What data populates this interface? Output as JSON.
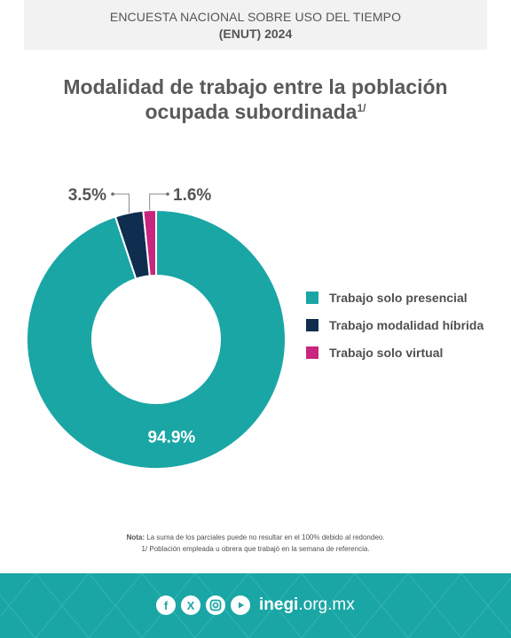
{
  "header": {
    "line1": "ENCUESTA NACIONAL SOBRE USO DEL TIEMPO",
    "line2": "(ENUT) 2024"
  },
  "chart_data": {
    "type": "pie",
    "title_line1": "Modalidad de trabajo entre la población",
    "title_line2": "ocupada subordinada",
    "title_sup": "1/",
    "labels": [
      "Trabajo solo presencial",
      "Trabajo modalidad híbrida",
      "Trabajo solo virtual"
    ],
    "values": [
      94.9,
      3.5,
      1.6
    ],
    "value_labels": [
      "94.9%",
      "3.5%",
      "1.6%"
    ],
    "colors": [
      "#1aa6a5",
      "#0e2d4f",
      "#c8267f"
    ],
    "donut": true,
    "legend_position": "right"
  },
  "note": {
    "prefix": "Nota:",
    "line1": "La suma de los parciales puede no resultar en el 100% debido al redondeo.",
    "line2": "1/ Población empleada u obrera que trabajó en la semana de referencia."
  },
  "footer": {
    "social_icons": [
      "facebook-icon",
      "x-icon",
      "instagram-icon",
      "youtube-icon"
    ],
    "domain_bold": "inegi",
    "domain_rest": ".org.mx",
    "bg_color": "#1aa6a5"
  }
}
